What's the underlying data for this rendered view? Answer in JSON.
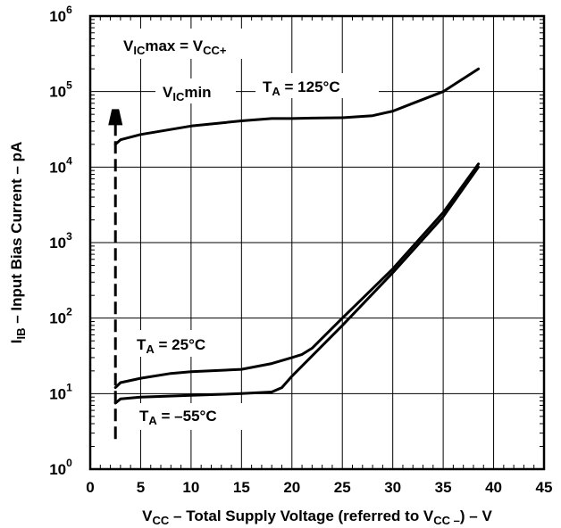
{
  "chart_data": {
    "type": "line",
    "y_scale": "log10",
    "xlim": [
      0,
      45
    ],
    "ylim": [
      1,
      1000000
    ],
    "x_ticks": [
      "0",
      "5",
      "10",
      "15",
      "20",
      "25",
      "30",
      "35",
      "40",
      "45"
    ],
    "y_ticks": [
      {
        "base": "10",
        "exp": "0"
      },
      {
        "base": "10",
        "exp": "1"
      },
      {
        "base": "10",
        "exp": "2"
      },
      {
        "base": "10",
        "exp": "3"
      },
      {
        "base": "10",
        "exp": "4"
      },
      {
        "base": "10",
        "exp": "5"
      },
      {
        "base": "10",
        "exp": "6"
      }
    ],
    "grid": true,
    "xlabel": {
      "pre": "V",
      "sub1": "CC",
      "mid": " – Total Supply Voltage (referred to V",
      "sub2": "CC –",
      "post": ") – V"
    },
    "ylabel": {
      "pre": "I",
      "sub": "IB",
      "post": " – Input Bias Current – pA"
    },
    "series": [
      {
        "name": {
          "pre": "T",
          "sub": "A",
          "post": " = 125°C"
        },
        "x": [
          2.5,
          3,
          5,
          10,
          15,
          18,
          20,
          22,
          25,
          28,
          30,
          32,
          35,
          38.5
        ],
        "y": [
          20000,
          23000,
          27000,
          35000,
          41000,
          44000,
          44000,
          44500,
          45000,
          48000,
          55000,
          70000,
          100000,
          200000
        ]
      },
      {
        "name": {
          "pre": "T",
          "sub": "A",
          "post": " = 25°C"
        },
        "x": [
          2.5,
          3,
          5,
          8,
          10,
          15,
          18,
          20,
          21,
          22,
          25,
          30,
          35,
          38.5
        ],
        "y": [
          12,
          14,
          16,
          18.5,
          19.5,
          21,
          25,
          30,
          33,
          40,
          100,
          450,
          2500,
          11000
        ]
      },
      {
        "name": {
          "pre": "T",
          "sub": "A",
          "post": " = –55°C"
        },
        "x": [
          2.5,
          3,
          5,
          10,
          15,
          18,
          19,
          20,
          25,
          30,
          35,
          38.5
        ],
        "y": [
          7.5,
          8.5,
          9,
          9.5,
          10,
          10.5,
          12,
          17,
          80,
          400,
          2200,
          10000
        ]
      }
    ],
    "vicmin_line": {
      "x": 2.5,
      "y_range": [
        2.5,
        40000
      ]
    },
    "annotations": [
      {
        "pre": "V",
        "sub": "IC",
        "post": "max = V",
        "sub2": "CC+"
      },
      {
        "pre": "V",
        "sub": "IC",
        "post": "min"
      }
    ]
  }
}
